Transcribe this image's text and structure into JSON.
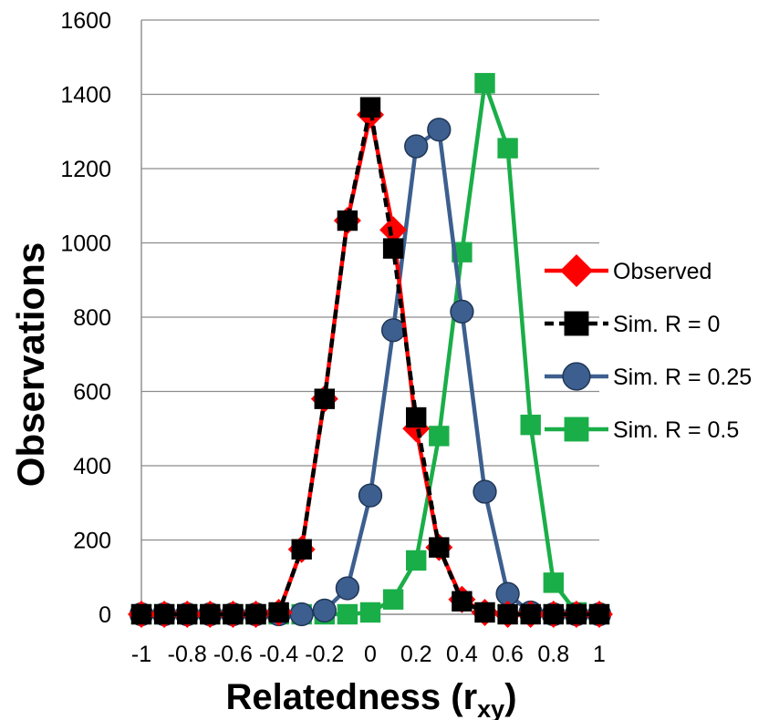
{
  "chart_data": {
    "type": "line",
    "title": "",
    "xlabel": "Relatedness (r",
    "xlabel_subscript": "xy",
    "xlabel_suffix": ")",
    "ylabel": "Observations",
    "xlim": [
      -1,
      1
    ],
    "ylim": [
      0,
      1600
    ],
    "grid": "horizontal",
    "legend_position": "right",
    "x_tick_labels": [
      "-1",
      "-0.8",
      "-0.6",
      "-0.4",
      "-0.2",
      "0",
      "0.2",
      "0.4",
      "0.6",
      "0.8",
      "1"
    ],
    "y_tick_labels": [
      "0",
      "200",
      "400",
      "600",
      "800",
      "1000",
      "1200",
      "1400",
      "1600"
    ],
    "x": [
      -1,
      -0.9,
      -0.8,
      -0.7,
      -0.6,
      -0.5,
      -0.4,
      -0.3,
      -0.2,
      -0.1,
      0,
      0.1,
      0.2,
      0.3,
      0.4,
      0.5,
      0.6,
      0.7,
      0.8,
      0.9,
      1
    ],
    "series": [
      {
        "name": "Observed",
        "color": "#ff0000",
        "marker": "diamond",
        "line_style": "solid",
        "values": [
          0,
          0,
          0,
          0,
          0,
          0,
          5,
          175,
          580,
          1060,
          1345,
          1035,
          500,
          180,
          40,
          5,
          0,
          0,
          0,
          0,
          0
        ]
      },
      {
        "name": "Sim. R = 0",
        "color": "#000000",
        "marker": "square",
        "line_style": "dashed",
        "values": [
          0,
          0,
          0,
          0,
          0,
          0,
          5,
          175,
          580,
          1060,
          1365,
          985,
          530,
          180,
          35,
          5,
          0,
          0,
          0,
          0,
          0
        ]
      },
      {
        "name": "Sim. R = 0.25",
        "color": "#3d5f8f",
        "marker": "circle",
        "line_style": "solid",
        "values": [
          0,
          0,
          0,
          0,
          0,
          0,
          0,
          0,
          10,
          70,
          320,
          765,
          1260,
          1305,
          815,
          330,
          55,
          5,
          0,
          0,
          0
        ]
      },
      {
        "name": "Sim. R = 0.5",
        "color": "#1aae48",
        "marker": "square",
        "line_style": "solid",
        "values": [
          0,
          0,
          0,
          0,
          0,
          0,
          0,
          0,
          0,
          0,
          5,
          40,
          145,
          480,
          975,
          1430,
          1255,
          510,
          85,
          5,
          0
        ]
      }
    ]
  }
}
